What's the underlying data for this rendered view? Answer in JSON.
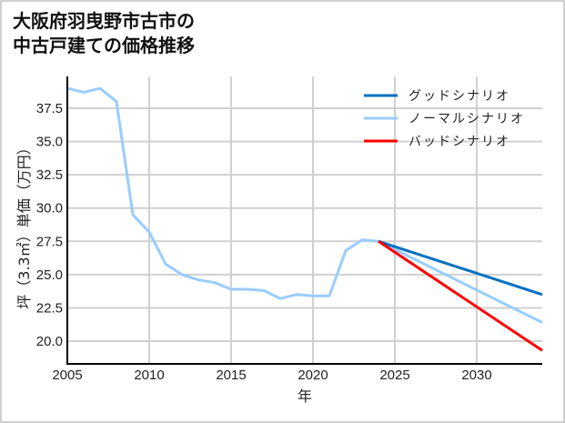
{
  "chart_data": {
    "type": "line",
    "title": "大阪府羽曳野市古市の中古戸建ての価格推移",
    "title_lines": [
      "大阪府羽曳野市古市の",
      "中古戸建ての価格推移"
    ],
    "xlabel": "年",
    "ylabel": "坪（3.3㎡）単価（万円）",
    "xlim": [
      2005,
      2034
    ],
    "ylim": [
      18.3,
      40.2
    ],
    "x_ticks": [
      2005,
      2010,
      2015,
      2020,
      2025,
      2030
    ],
    "y_ticks": [
      20.0,
      22.5,
      25.0,
      27.5,
      30.0,
      32.5,
      35.0,
      37.5
    ],
    "grid": true,
    "legend_position": "upper right",
    "series": [
      {
        "name": "ノーマルシナリオ",
        "color": "#99ccff",
        "x": [
          2005,
          2006,
          2007,
          2008,
          2009,
          2010,
          2011,
          2012,
          2013,
          2014,
          2015,
          2016,
          2017,
          2018,
          2019,
          2020,
          2021,
          2022,
          2023,
          2024,
          2034
        ],
        "values": [
          39.0,
          38.7,
          39.0,
          38.0,
          29.5,
          28.2,
          25.8,
          25.0,
          24.6,
          24.4,
          23.9,
          23.9,
          23.8,
          23.2,
          23.5,
          23.4,
          23.4,
          26.8,
          27.6,
          27.5,
          21.4
        ]
      },
      {
        "name": "グッドシナリオ",
        "color": "#0070c0",
        "x": [
          2024,
          2034
        ],
        "values": [
          27.5,
          23.5
        ]
      },
      {
        "name": "バッドシナリオ",
        "color": "#ff0000",
        "x": [
          2024,
          2034
        ],
        "values": [
          27.5,
          19.3
        ]
      }
    ],
    "legend": [
      {
        "label": "グッドシナリオ",
        "color": "#0070c0"
      },
      {
        "label": "ノーマルシナリオ",
        "color": "#99ccff"
      },
      {
        "label": "バッドシナリオ",
        "color": "#ff0000"
      }
    ]
  }
}
